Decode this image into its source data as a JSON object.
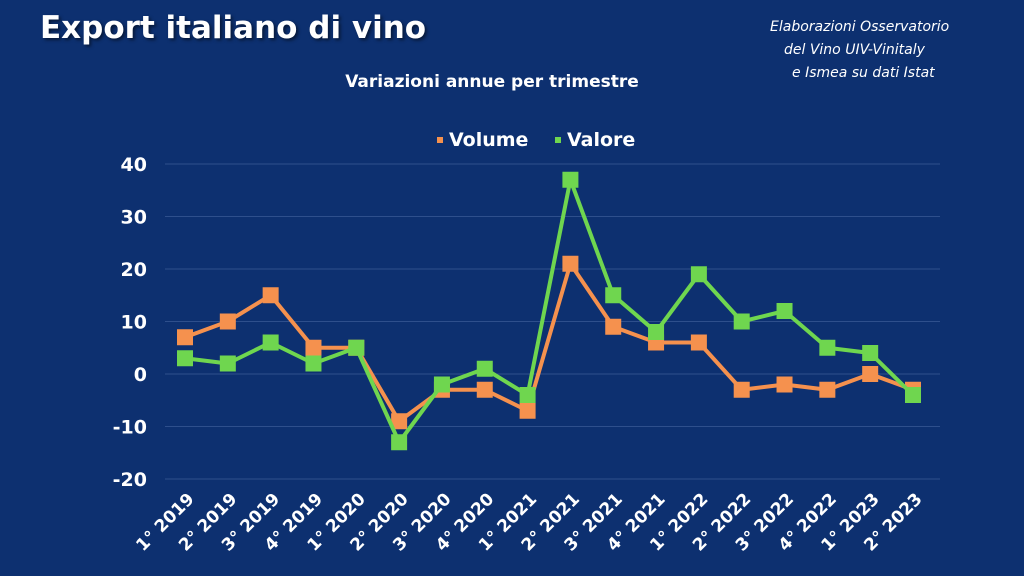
{
  "header": {
    "title": "Export italiano di vino",
    "subtitle": "Variazioni annue per trimestre",
    "source_lines": [
      "Elaborazioni Osservatorio",
      "del Vino UIV-Vinitaly",
      "e Ismea su dati Istat"
    ]
  },
  "chart_data": {
    "type": "line",
    "categories": [
      "1° 2019",
      "2° 2019",
      "3° 2019",
      "4° 2019",
      "1° 2020",
      "2° 2020",
      "3° 2020",
      "4° 2020",
      "1° 2021",
      "2° 2021",
      "3° 2021",
      "4° 2021",
      "1° 2022",
      "2° 2022",
      "3° 2022",
      "4° 2022",
      "1° 2023",
      "2° 2023"
    ],
    "series": [
      {
        "name": "Volume",
        "color": "#f5914e",
        "values": [
          7,
          10,
          15,
          5,
          5,
          -9,
          -3,
          -3,
          -7,
          21,
          9,
          6,
          6,
          -3,
          -2,
          -3,
          0,
          -3
        ]
      },
      {
        "name": "Valore",
        "color": "#6fd64f",
        "values": [
          3,
          2,
          6,
          2,
          5,
          -13,
          -2,
          1,
          -4,
          37,
          15,
          8,
          19,
          10,
          12,
          5,
          4,
          -4
        ]
      }
    ],
    "ylim": [
      -20,
      40
    ],
    "yticks": [
      40,
      30,
      20,
      10,
      0,
      -10,
      -20
    ],
    "grid": true,
    "legend": "top-center",
    "xlabel": "",
    "ylabel": ""
  }
}
